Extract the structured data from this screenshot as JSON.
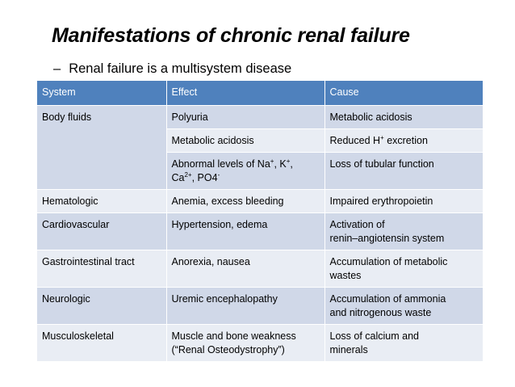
{
  "title": "Manifestations of chronic renal failure",
  "subtitle": {
    "bullet": "–",
    "text": "Renal failure is a multisystem disease"
  },
  "table": {
    "headers": [
      "System",
      "Effect",
      "Cause"
    ],
    "body_fluids": {
      "system": "Body fluids",
      "row1": {
        "effect": "Polyuria",
        "cause": "Metabolic acidosis"
      },
      "row2": {
        "effect": "Metabolic acidosis",
        "cause_prefix": "Reduced H",
        "cause_sup": "+",
        "cause_suffix": " excretion"
      },
      "row3": {
        "effect_na": "Abnormal levels of Na",
        "effect_na_sup": "+",
        "effect_k": ", K",
        "effect_k_sup": "+",
        "effect_comma": ",",
        "effect_ca": "Ca",
        "effect_ca_sup": "2+",
        "effect_po4": ", PO4",
        "effect_po4_sup": "-",
        "cause": "Loss of tubular function"
      }
    },
    "rows": [
      {
        "system": "Hematologic",
        "effect": [
          "Anemia, excess bleeding"
        ],
        "cause": [
          "Impaired erythropoietin"
        ]
      },
      {
        "system": "Cardiovascular",
        "effect": [
          "Hypertension, edema"
        ],
        "cause": [
          "Activation of",
          "renin–angiotensin system"
        ]
      },
      {
        "system": "Gastrointestinal tract",
        "effect": [
          "Anorexia, nausea"
        ],
        "cause": [
          "Accumulation of metabolic",
          "wastes"
        ]
      },
      {
        "system": "Neurologic",
        "effect": [
          "Uremic encephalopathy"
        ],
        "cause": [
          "Accumulation of ammonia",
          "and nitrogenous waste"
        ]
      },
      {
        "system": "Musculoskeletal",
        "effect": [
          "Muscle and bone weakness",
          "(“Renal Osteodystrophy”)"
        ],
        "cause": [
          "Loss of calcium and",
          "minerals"
        ]
      }
    ]
  },
  "colors": {
    "header_bg": "#4f81bd",
    "band_dark": "#d0d8e8",
    "band_light": "#e9edf4"
  }
}
